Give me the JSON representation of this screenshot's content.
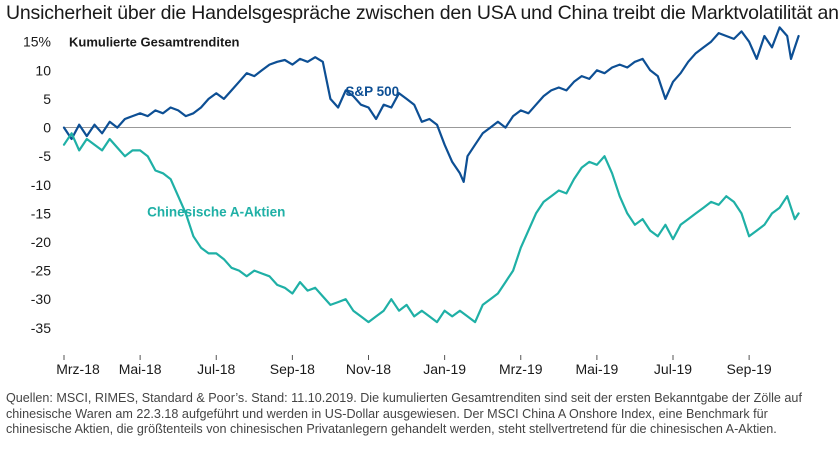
{
  "title": "Unsicherheit über die Handelsgespräche zwischen den USA und China treibt die Marktvolatilität an",
  "footnote": "Quellen: MSCI, RIMES, Standard & Poor’s. Stand: 11.10.2019. Die kumulierten Gesamtrenditen sind seit der ersten Bekanntgabe der Zölle auf chinesische Waren am 22.3.18 aufgeführt und werden in US-Dollar ausgewiesen. Der MSCI China A Onshore Index, eine Benchmark für chinesische Aktien, die größtenteils von chinesischen Privatanlegern gehandelt werden, steht stellvertretend für die chinesischen A-Aktien.",
  "colors": {
    "sp500": "#0d4f94",
    "china": "#1fb0a6",
    "zero_line": "#999999"
  },
  "chart_data": {
    "type": "line",
    "ylabel": "Kumulierte Gesamtrenditen",
    "ylim": [
      -38,
      16
    ],
    "yticks": [
      15,
      10,
      5,
      0,
      -5,
      -10,
      -15,
      -20,
      -25,
      -30,
      -35
    ],
    "ytick_labels": [
      "15%",
      "10",
      "5",
      "0",
      "-5",
      "-10",
      "-15",
      "-20",
      "-25",
      "-30",
      "-35"
    ],
    "xlim": [
      0,
      19.1
    ],
    "xticks": [
      0,
      2,
      4,
      6,
      8,
      10,
      12,
      14,
      16,
      18
    ],
    "xtick_labels": [
      "Mrz-18",
      "Mai-18",
      "Jul-18",
      "Sep-18",
      "Nov-18",
      "Jan-19",
      "Mrz-19",
      "Mai-19",
      "Jul-19",
      "Sep-19"
    ],
    "series": [
      {
        "name": "S&P 500",
        "label_anchor": [
          8.1,
          5.5
        ],
        "points": [
          [
            0.0,
            0
          ],
          [
            0.2,
            -2
          ],
          [
            0.4,
            0.5
          ],
          [
            0.6,
            -1.5
          ],
          [
            0.8,
            0.5
          ],
          [
            1.0,
            -1
          ],
          [
            1.2,
            1
          ],
          [
            1.4,
            0
          ],
          [
            1.6,
            1.5
          ],
          [
            1.8,
            2
          ],
          [
            2.0,
            2.5
          ],
          [
            2.2,
            2
          ],
          [
            2.4,
            3
          ],
          [
            2.6,
            2.5
          ],
          [
            2.8,
            3.5
          ],
          [
            3.0,
            3
          ],
          [
            3.2,
            2
          ],
          [
            3.4,
            2.5
          ],
          [
            3.6,
            3.5
          ],
          [
            3.8,
            5
          ],
          [
            4.0,
            6
          ],
          [
            4.2,
            5
          ],
          [
            4.4,
            6.5
          ],
          [
            4.6,
            8
          ],
          [
            4.8,
            9.5
          ],
          [
            5.0,
            9
          ],
          [
            5.2,
            10
          ],
          [
            5.4,
            11
          ],
          [
            5.6,
            11.5
          ],
          [
            5.8,
            11.8
          ],
          [
            6.0,
            11
          ],
          [
            6.2,
            12
          ],
          [
            6.4,
            11.5
          ],
          [
            6.6,
            12.3
          ],
          [
            6.8,
            11.5
          ],
          [
            7.0,
            5
          ],
          [
            7.2,
            3.5
          ],
          [
            7.4,
            6.5
          ],
          [
            7.6,
            5.5
          ],
          [
            7.8,
            4
          ],
          [
            8.0,
            3.5
          ],
          [
            8.2,
            1.5
          ],
          [
            8.4,
            4
          ],
          [
            8.6,
            3.5
          ],
          [
            8.8,
            6
          ],
          [
            9.0,
            5
          ],
          [
            9.2,
            4
          ],
          [
            9.4,
            1
          ],
          [
            9.6,
            1.5
          ],
          [
            9.8,
            0.5
          ],
          [
            10.0,
            -3
          ],
          [
            10.2,
            -6
          ],
          [
            10.4,
            -8
          ],
          [
            10.5,
            -9.5
          ],
          [
            10.6,
            -5
          ],
          [
            10.8,
            -3
          ],
          [
            11.0,
            -1
          ],
          [
            11.2,
            0
          ],
          [
            11.4,
            1
          ],
          [
            11.6,
            0
          ],
          [
            11.8,
            2
          ],
          [
            12.0,
            3
          ],
          [
            12.2,
            2.5
          ],
          [
            12.4,
            4
          ],
          [
            12.6,
            5.5
          ],
          [
            12.8,
            6.5
          ],
          [
            13.0,
            7
          ],
          [
            13.2,
            6.5
          ],
          [
            13.4,
            8
          ],
          [
            13.6,
            9
          ],
          [
            13.8,
            8.5
          ],
          [
            14.0,
            10
          ],
          [
            14.2,
            9.5
          ],
          [
            14.4,
            10.5
          ],
          [
            14.6,
            11
          ],
          [
            14.8,
            10.5
          ],
          [
            15.0,
            11.5
          ],
          [
            15.2,
            12
          ],
          [
            15.4,
            10
          ],
          [
            15.6,
            9
          ],
          [
            15.8,
            5
          ],
          [
            16.0,
            8
          ],
          [
            16.2,
            9.5
          ],
          [
            16.4,
            11.5
          ],
          [
            16.6,
            13
          ],
          [
            16.8,
            14
          ],
          [
            17.0,
            15
          ],
          [
            17.2,
            16.5
          ],
          [
            17.4,
            16
          ],
          [
            17.6,
            15.5
          ],
          [
            17.8,
            16.8
          ],
          [
            18.0,
            15
          ],
          [
            18.2,
            12
          ],
          [
            18.4,
            16
          ],
          [
            18.6,
            14
          ],
          [
            18.8,
            17.5
          ],
          [
            19.0,
            16
          ],
          [
            19.1,
            12
          ],
          [
            19.2,
            14
          ],
          [
            19.3,
            16
          ]
        ]
      },
      {
        "name": "Chinesische A-Aktien",
        "label_anchor": [
          4.0,
          -15.5
        ],
        "points": [
          [
            0.0,
            -3
          ],
          [
            0.2,
            -1
          ],
          [
            0.4,
            -4
          ],
          [
            0.6,
            -2
          ],
          [
            0.8,
            -3
          ],
          [
            1.0,
            -4
          ],
          [
            1.2,
            -2
          ],
          [
            1.4,
            -3.5
          ],
          [
            1.6,
            -5
          ],
          [
            1.8,
            -4
          ],
          [
            2.0,
            -4
          ],
          [
            2.2,
            -5
          ],
          [
            2.4,
            -7.5
          ],
          [
            2.6,
            -8
          ],
          [
            2.8,
            -9
          ],
          [
            3.0,
            -12
          ],
          [
            3.2,
            -15
          ],
          [
            3.4,
            -19
          ],
          [
            3.6,
            -21
          ],
          [
            3.8,
            -22
          ],
          [
            4.0,
            -22
          ],
          [
            4.2,
            -23
          ],
          [
            4.4,
            -24.5
          ],
          [
            4.6,
            -25
          ],
          [
            4.8,
            -26
          ],
          [
            5.0,
            -25
          ],
          [
            5.2,
            -25.5
          ],
          [
            5.4,
            -26
          ],
          [
            5.6,
            -27.5
          ],
          [
            5.8,
            -28
          ],
          [
            6.0,
            -29
          ],
          [
            6.2,
            -27
          ],
          [
            6.4,
            -28.5
          ],
          [
            6.6,
            -28
          ],
          [
            6.8,
            -29.5
          ],
          [
            7.0,
            -31
          ],
          [
            7.2,
            -30.5
          ],
          [
            7.4,
            -30
          ],
          [
            7.6,
            -32
          ],
          [
            7.8,
            -33
          ],
          [
            8.0,
            -34
          ],
          [
            8.2,
            -33
          ],
          [
            8.4,
            -32
          ],
          [
            8.6,
            -30
          ],
          [
            8.8,
            -32
          ],
          [
            9.0,
            -31
          ],
          [
            9.2,
            -33
          ],
          [
            9.4,
            -32
          ],
          [
            9.6,
            -33
          ],
          [
            9.8,
            -34
          ],
          [
            10.0,
            -32
          ],
          [
            10.2,
            -33
          ],
          [
            10.4,
            -32
          ],
          [
            10.6,
            -33
          ],
          [
            10.8,
            -34
          ],
          [
            11.0,
            -31
          ],
          [
            11.2,
            -30
          ],
          [
            11.4,
            -29
          ],
          [
            11.6,
            -27
          ],
          [
            11.8,
            -25
          ],
          [
            12.0,
            -21
          ],
          [
            12.2,
            -18
          ],
          [
            12.4,
            -15
          ],
          [
            12.6,
            -13
          ],
          [
            12.8,
            -12
          ],
          [
            13.0,
            -11
          ],
          [
            13.2,
            -11.5
          ],
          [
            13.4,
            -9
          ],
          [
            13.6,
            -7
          ],
          [
            13.8,
            -6
          ],
          [
            14.0,
            -6.5
          ],
          [
            14.2,
            -5
          ],
          [
            14.4,
            -8
          ],
          [
            14.6,
            -12
          ],
          [
            14.8,
            -15
          ],
          [
            15.0,
            -17
          ],
          [
            15.2,
            -16
          ],
          [
            15.4,
            -18
          ],
          [
            15.6,
            -19
          ],
          [
            15.8,
            -17
          ],
          [
            16.0,
            -19.5
          ],
          [
            16.2,
            -17
          ],
          [
            16.4,
            -16
          ],
          [
            16.6,
            -15
          ],
          [
            16.8,
            -14
          ],
          [
            17.0,
            -13
          ],
          [
            17.2,
            -13.5
          ],
          [
            17.4,
            -12
          ],
          [
            17.6,
            -13
          ],
          [
            17.8,
            -15
          ],
          [
            18.0,
            -19
          ],
          [
            18.2,
            -18
          ],
          [
            18.4,
            -17
          ],
          [
            18.6,
            -15
          ],
          [
            18.8,
            -14
          ],
          [
            19.0,
            -12
          ],
          [
            19.2,
            -16
          ],
          [
            19.3,
            -15
          ]
        ]
      }
    ]
  }
}
